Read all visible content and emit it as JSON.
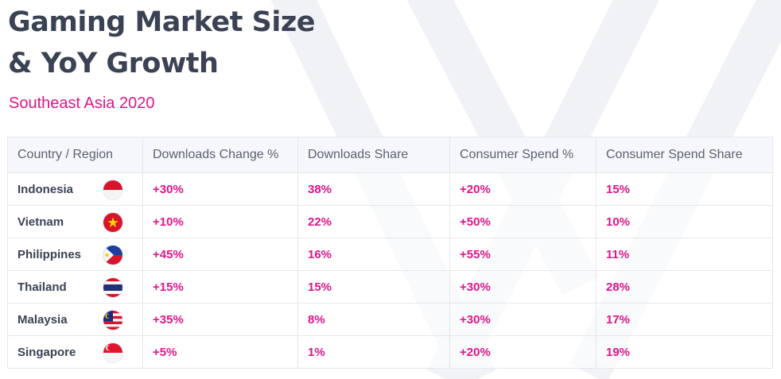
{
  "title_line1": "Gaming Market Size",
  "title_line2": "& YoY Growth",
  "subtitle": "Southeast Asia 2020",
  "colors": {
    "title": "#3a4254",
    "accent": "#e0158a",
    "header_text": "#5b6272"
  },
  "chart_data": {
    "type": "table",
    "title": "Gaming Market Size & YoY Growth",
    "subtitle": "Southeast Asia 2020",
    "columns": [
      "Country / Region",
      "Downloads Change %",
      "Downloads Share",
      "Consumer Spend  %",
      "Consumer Spend Share"
    ],
    "rows": [
      {
        "country": "Indonesia",
        "flag": "indonesia-flag-icon",
        "downloads_change": "+30%",
        "downloads_share": "38%",
        "consumer_spend": "+20%",
        "consumer_spend_share": "15%"
      },
      {
        "country": "Vietnam",
        "flag": "vietnam-flag-icon",
        "downloads_change": "+10%",
        "downloads_share": "22%",
        "consumer_spend": "+50%",
        "consumer_spend_share": "10%"
      },
      {
        "country": "Philippines",
        "flag": "philippines-flag-icon",
        "downloads_change": "+45%",
        "downloads_share": "16%",
        "consumer_spend": "+55%",
        "consumer_spend_share": "11%"
      },
      {
        "country": "Thailand",
        "flag": "thailand-flag-icon",
        "downloads_change": "+15%",
        "downloads_share": "15%",
        "consumer_spend": "+30%",
        "consumer_spend_share": "28%"
      },
      {
        "country": "Malaysia",
        "flag": "malaysia-flag-icon",
        "downloads_change": "+35%",
        "downloads_share": "8%",
        "consumer_spend": "+30%",
        "consumer_spend_share": "17%"
      },
      {
        "country": "Singapore",
        "flag": "singapore-flag-icon",
        "downloads_change": "+5%",
        "downloads_share": "1%",
        "consumer_spend": "+20%",
        "consumer_spend_share": "19%"
      }
    ]
  }
}
